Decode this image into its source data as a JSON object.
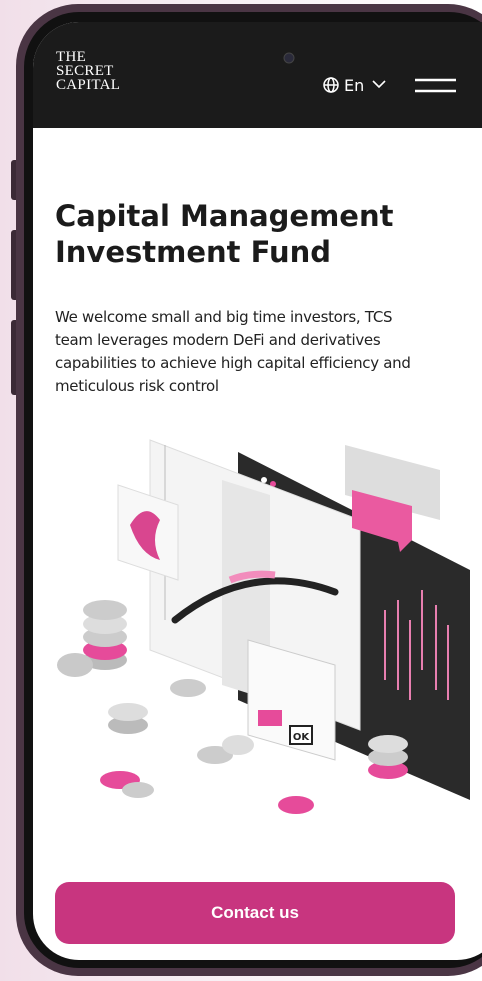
{
  "header": {
    "logo": [
      "THE",
      "SECRET",
      "CAPITAL"
    ],
    "language": "En"
  },
  "hero": {
    "title": [
      "Capital Management",
      "Investment Fund"
    ],
    "description": [
      "We welcome small and big time investors, TCS",
      "team leverages modern DeFi and derivatives",
      "capabilities to achieve high capital efficiency and",
      "meticulous risk control"
    ]
  },
  "illustration": {
    "button_label": "OK"
  },
  "cta": {
    "label": "Contact us"
  }
}
